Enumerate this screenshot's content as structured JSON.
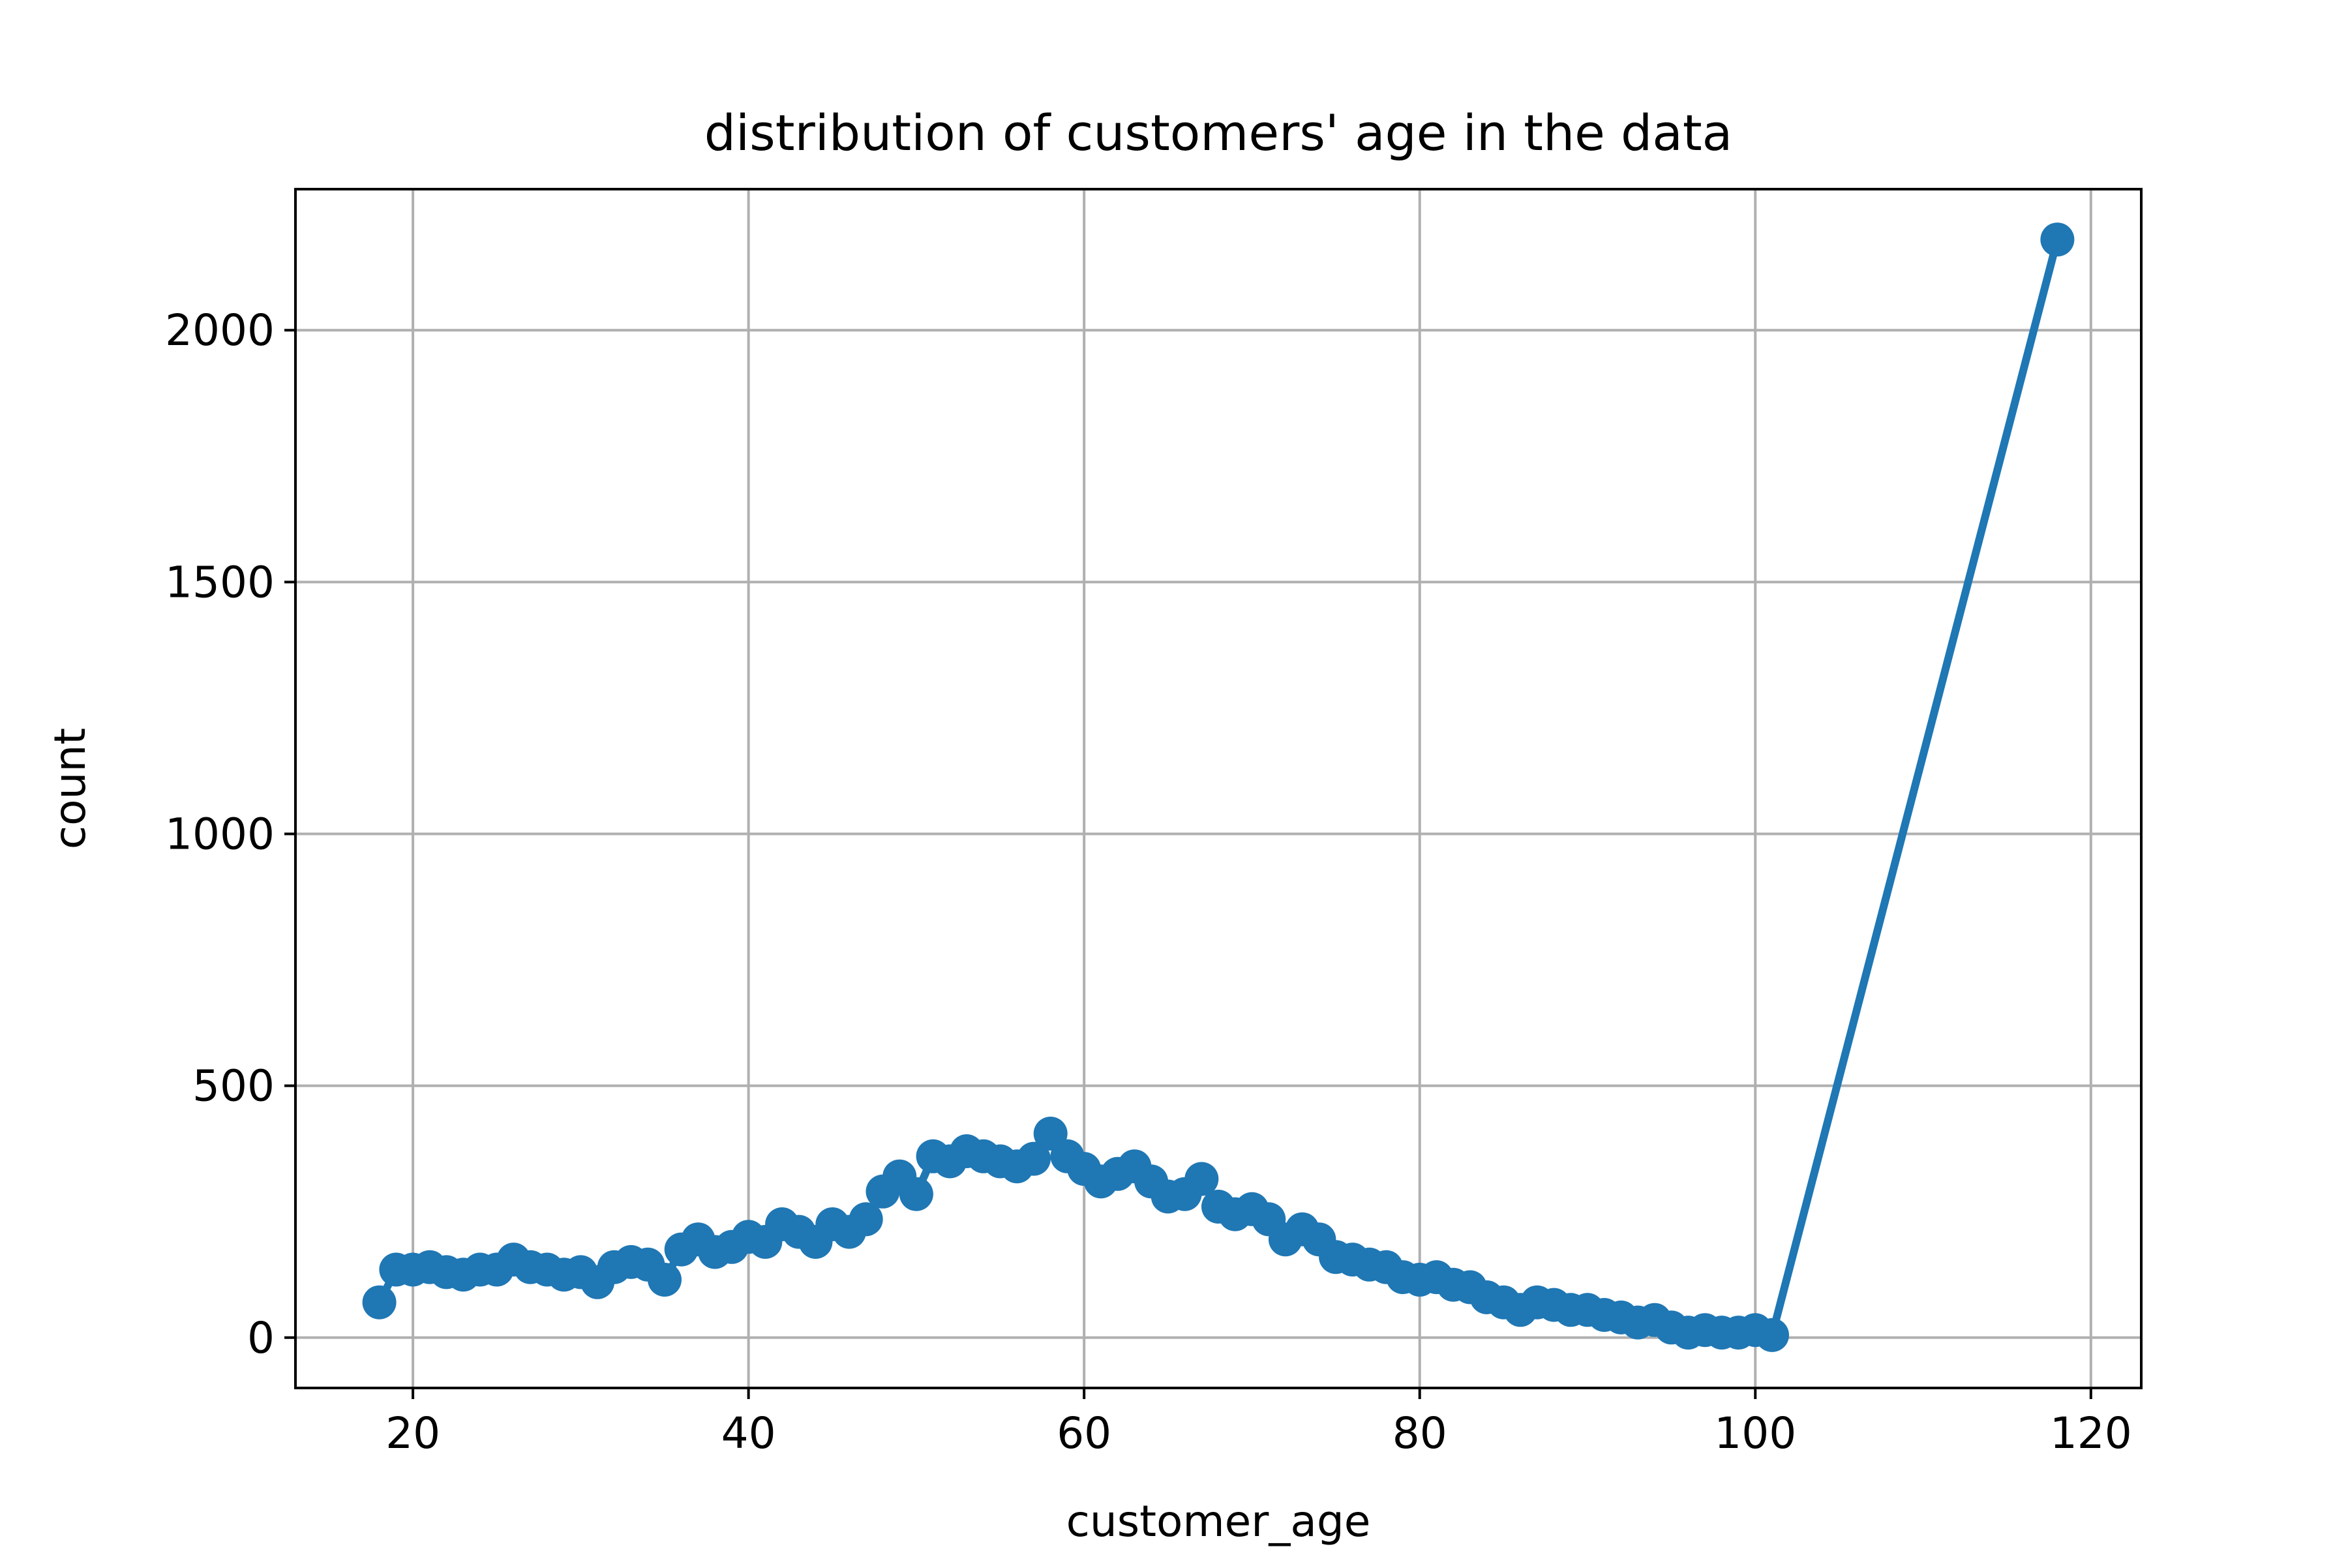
{
  "chart_data": {
    "type": "line",
    "title": "distribution of customers' age in the data",
    "xlabel": "customer_age",
    "ylabel": "count",
    "xlim": [
      13,
      123
    ],
    "ylim": [
      -100,
      2280
    ],
    "xticks": [
      20,
      40,
      60,
      80,
      100,
      120
    ],
    "yticks": [
      0,
      500,
      1000,
      1500,
      2000
    ],
    "grid": true,
    "legend": "none",
    "colors": {
      "series": "#1f77b4",
      "grid": "#b0b0b0",
      "axes": "#000000"
    },
    "series": [
      {
        "name": "count",
        "marker": "o",
        "x": [
          18,
          19,
          20,
          21,
          22,
          23,
          24,
          25,
          26,
          27,
          28,
          29,
          30,
          31,
          32,
          33,
          34,
          35,
          36,
          37,
          38,
          39,
          40,
          41,
          42,
          43,
          44,
          45,
          46,
          47,
          48,
          49,
          50,
          51,
          52,
          53,
          54,
          55,
          56,
          57,
          58,
          59,
          60,
          61,
          62,
          63,
          64,
          65,
          66,
          67,
          68,
          69,
          70,
          71,
          72,
          73,
          74,
          75,
          76,
          77,
          78,
          79,
          80,
          81,
          82,
          83,
          84,
          85,
          86,
          87,
          88,
          89,
          90,
          91,
          92,
          93,
          94,
          95,
          96,
          97,
          98,
          99,
          100,
          101,
          118
        ],
        "y": [
          70,
          135,
          135,
          140,
          130,
          125,
          135,
          135,
          155,
          140,
          135,
          125,
          130,
          110,
          140,
          150,
          145,
          115,
          175,
          195,
          170,
          180,
          200,
          190,
          225,
          210,
          190,
          225,
          210,
          235,
          290,
          320,
          285,
          360,
          350,
          370,
          360,
          350,
          340,
          355,
          405,
          360,
          335,
          310,
          325,
          340,
          310,
          280,
          285,
          315,
          260,
          245,
          255,
          235,
          195,
          215,
          195,
          160,
          155,
          145,
          140,
          120,
          115,
          120,
          105,
          100,
          80,
          70,
          55,
          70,
          65,
          55,
          55,
          45,
          40,
          30,
          35,
          20,
          10,
          15,
          10,
          10,
          15,
          5,
          2180
        ]
      }
    ]
  }
}
